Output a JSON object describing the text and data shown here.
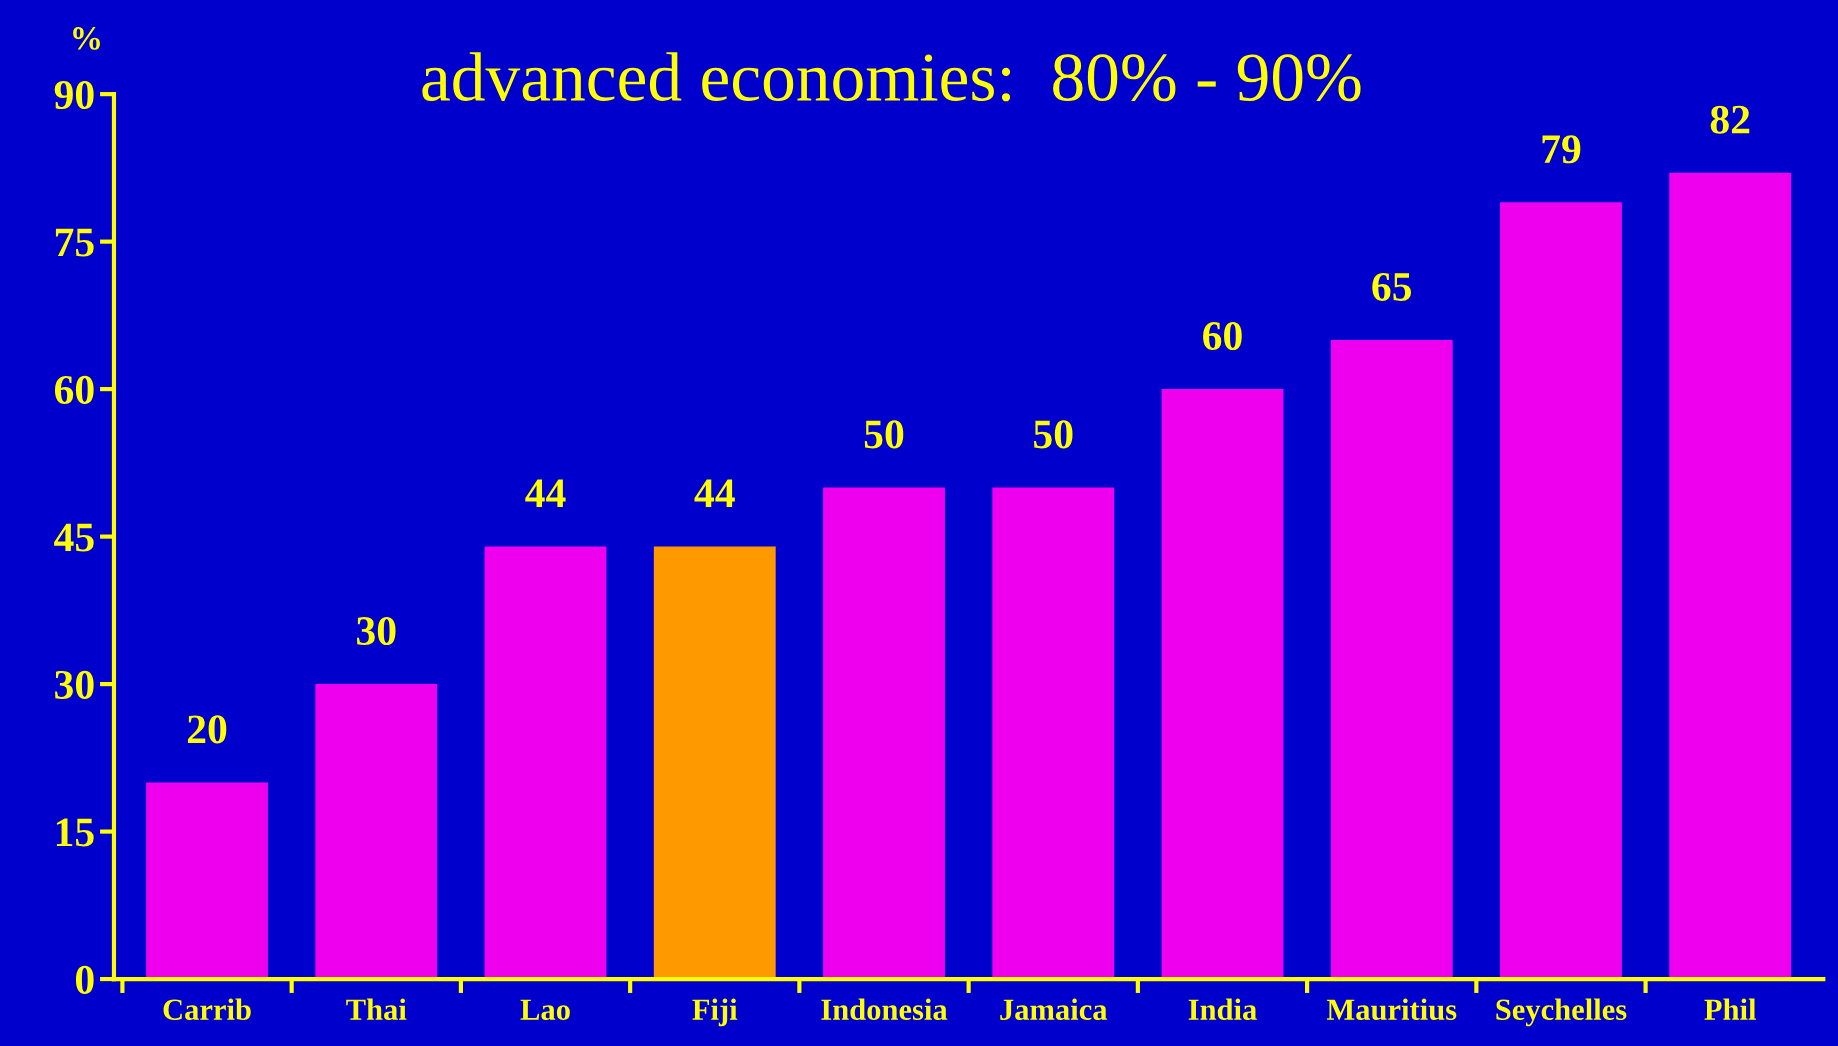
{
  "chart_data": {
    "type": "bar",
    "ylabel": "%",
    "annotations": [
      "advanced economies:  80% - 90%"
    ],
    "categories": [
      "Carrib",
      "Thai",
      "Lao",
      "Fiji",
      "Indonesia",
      "Jamaica",
      "India",
      "Mauritius",
      "Seychelles",
      "Phil"
    ],
    "values": [
      20,
      30,
      44,
      44,
      50,
      50,
      60,
      65,
      79,
      82
    ],
    "colors": [
      "#ee00ee",
      "#ee00ee",
      "#ee00ee",
      "#ff9900",
      "#ee00ee",
      "#ee00ee",
      "#ee00ee",
      "#ee00ee",
      "#ee00ee",
      "#ee00ee"
    ],
    "ylim": [
      0,
      90
    ],
    "yticks": [
      0,
      15,
      30,
      45,
      60,
      75,
      90
    ],
    "data_labels": true,
    "grid": false,
    "legend": false
  }
}
